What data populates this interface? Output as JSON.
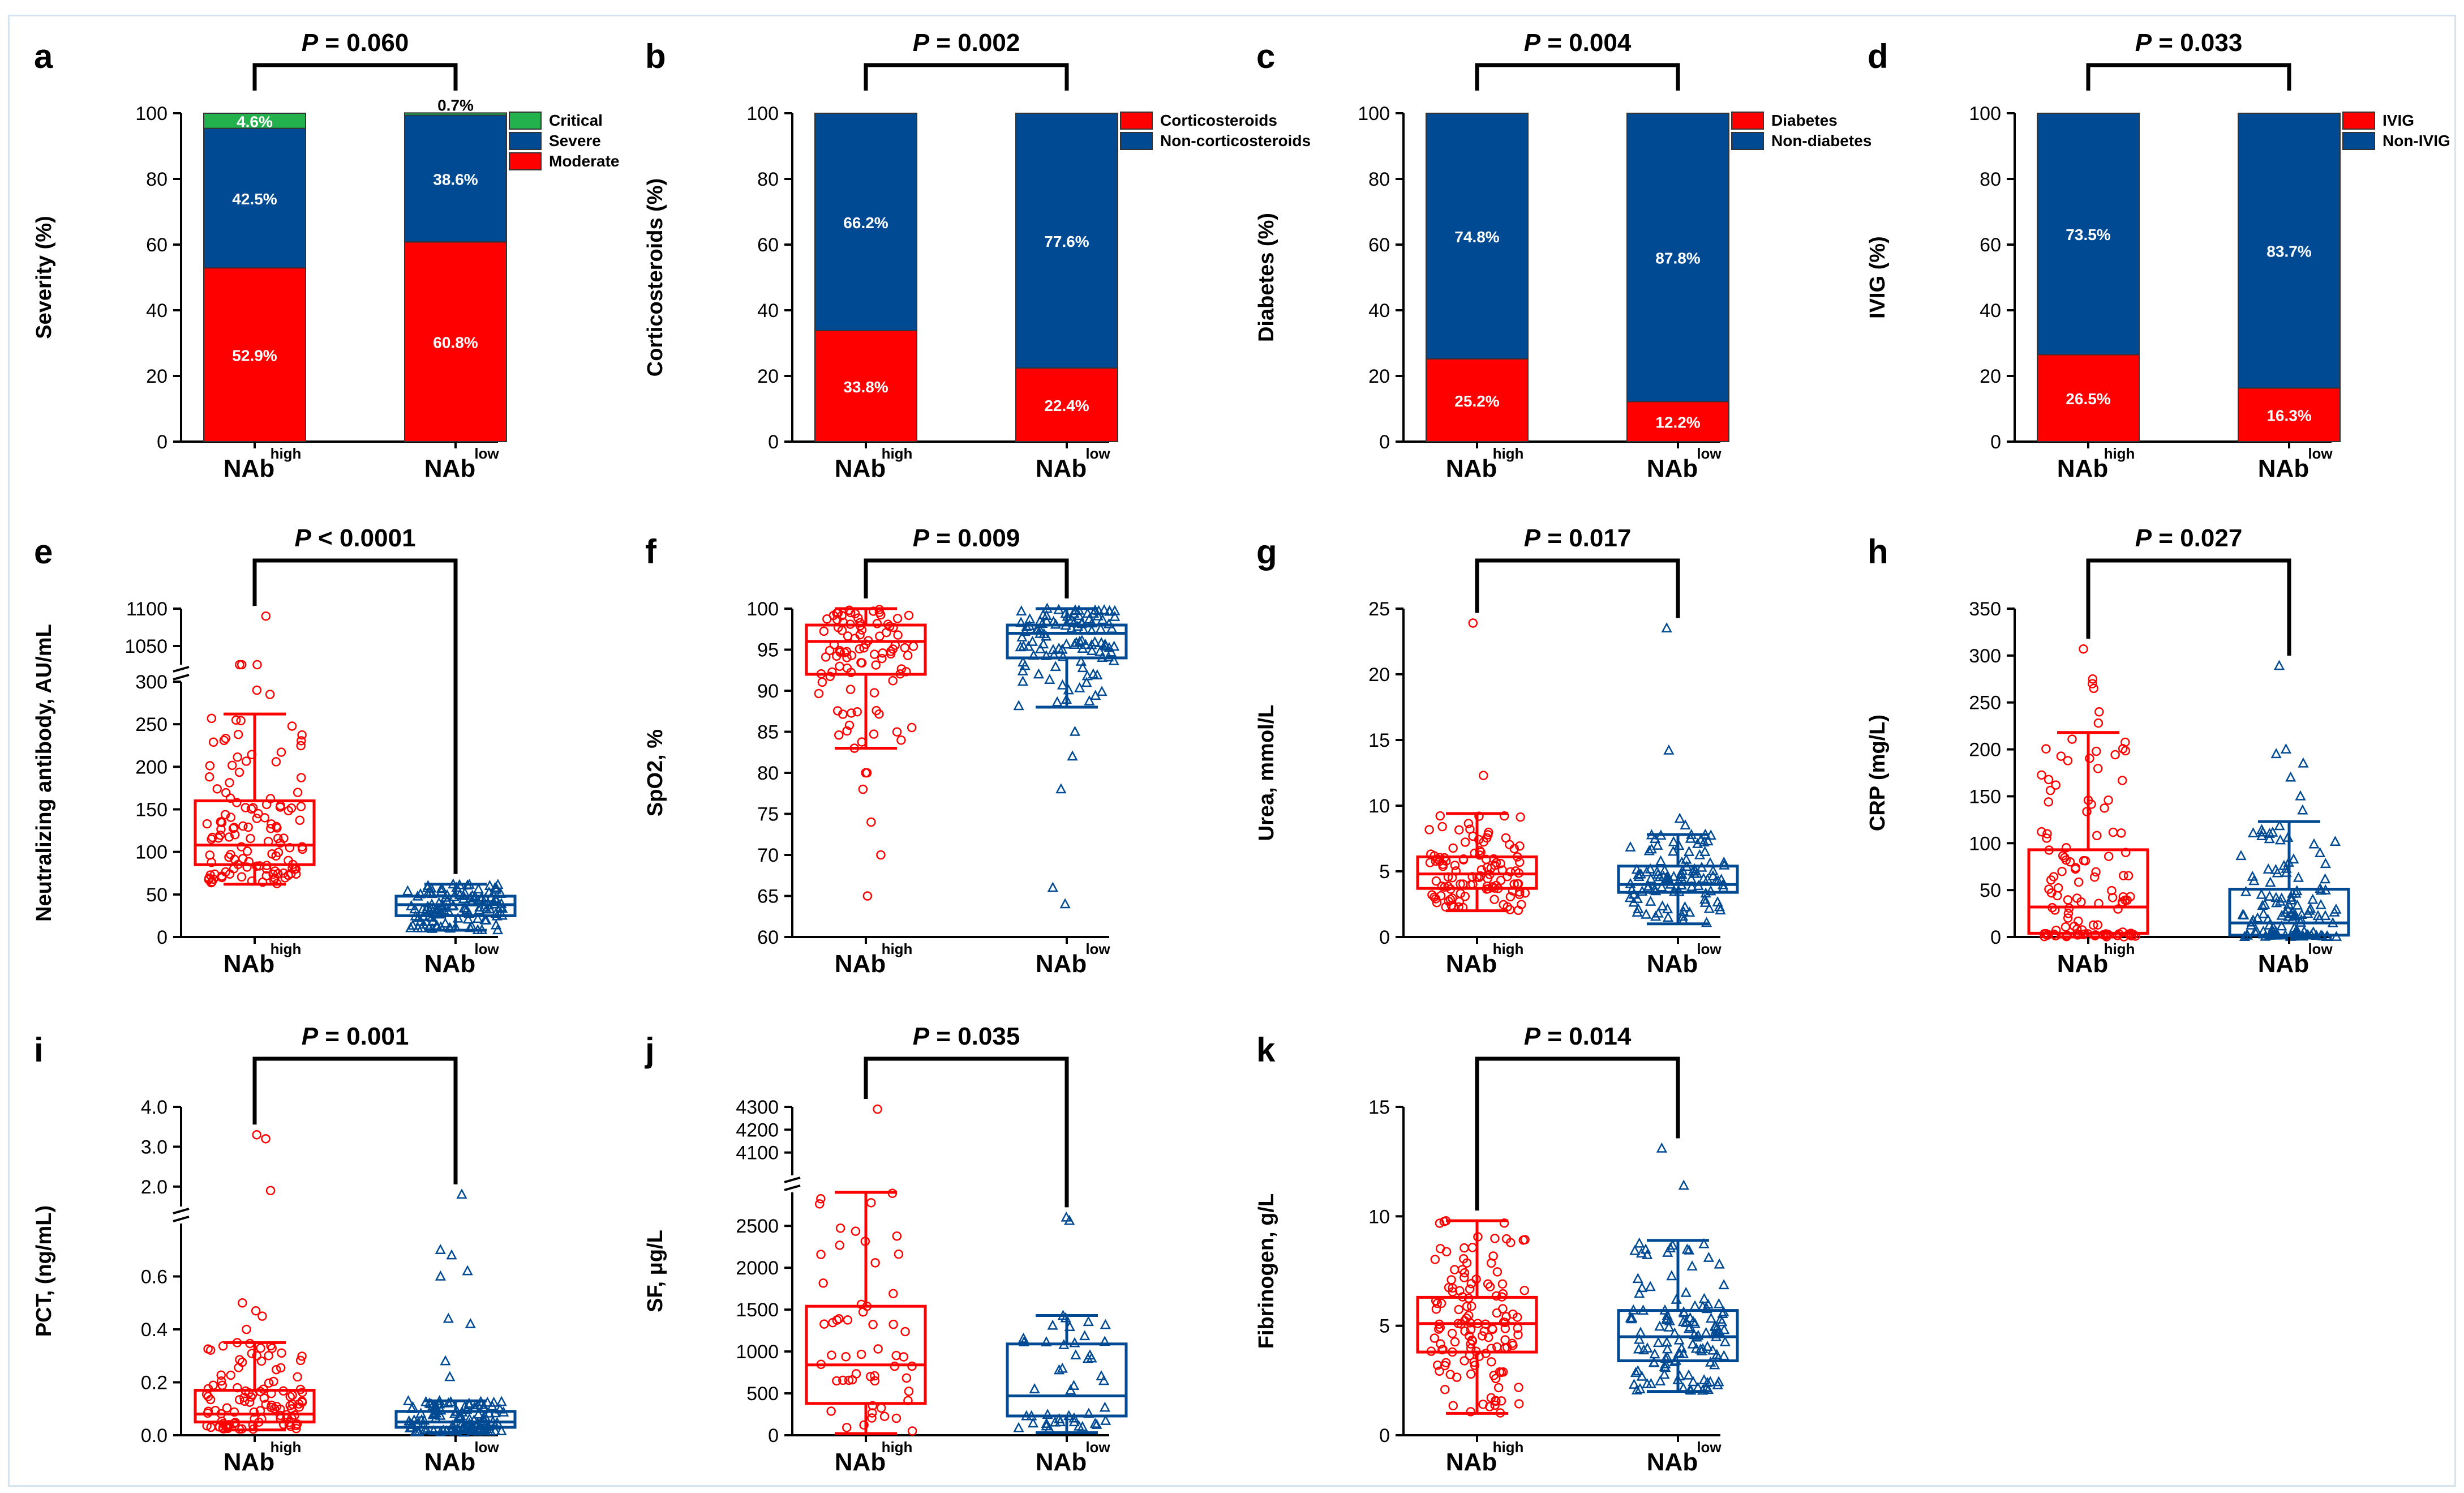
{
  "colors": {
    "high": "#ff0000",
    "low": "#004a93",
    "critical": "#22b14c",
    "axis": "#000000"
  },
  "group_labels": {
    "high": {
      "base": "NAb",
      "sup": "high"
    },
    "low": {
      "base": "NAb",
      "sup": "low"
    }
  },
  "chart_data": [
    {
      "panel": "a",
      "type": "stacked_bar",
      "pvalue": "P = 0.060",
      "ylabel": "Severity (%)",
      "ylim": [
        0,
        100
      ],
      "yticks": [
        "0",
        "20",
        "40",
        "60",
        "80",
        "100"
      ],
      "categories": [
        "NAb high",
        "NAb low"
      ],
      "series": [
        {
          "name": "Moderate",
          "color": "#ff0000",
          "values": [
            52.9,
            60.8
          ],
          "labels": [
            "52.9%",
            "60.8%"
          ]
        },
        {
          "name": "Severe",
          "color": "#004a93",
          "values": [
            42.5,
            38.6
          ],
          "labels": [
            "42.5%",
            "38.6%"
          ]
        },
        {
          "name": "Critical",
          "color": "#22b14c",
          "values": [
            4.6,
            0.7
          ],
          "labels": [
            "4.6%",
            "0.7%"
          ]
        }
      ],
      "legend": [
        "Critical",
        "Severe",
        "Moderate"
      ]
    },
    {
      "panel": "b",
      "type": "stacked_bar",
      "pvalue": "P = 0.002",
      "ylabel": "Corticosteroids (%)",
      "ylim": [
        0,
        100
      ],
      "yticks": [
        "0",
        "20",
        "40",
        "60",
        "80",
        "100"
      ],
      "categories": [
        "NAb high",
        "NAb low"
      ],
      "series": [
        {
          "name": "Corticosteroids",
          "color": "#ff0000",
          "values": [
            33.8,
            22.4
          ],
          "labels": [
            "33.8%",
            "22.4%"
          ]
        },
        {
          "name": "Non-corticosteroids",
          "color": "#004a93",
          "values": [
            66.2,
            77.6
          ],
          "labels": [
            "66.2%",
            "77.6%"
          ]
        }
      ],
      "legend": [
        "Corticosteroids",
        "Non-corticosteroids"
      ]
    },
    {
      "panel": "c",
      "type": "stacked_bar",
      "pvalue": "P = 0.004",
      "ylabel": "Diabetes (%)",
      "ylim": [
        0,
        100
      ],
      "yticks": [
        "0",
        "20",
        "40",
        "60",
        "80",
        "100"
      ],
      "categories": [
        "NAb high",
        "NAb low"
      ],
      "series": [
        {
          "name": "Diabetes",
          "color": "#ff0000",
          "values": [
            25.2,
            12.2
          ],
          "labels": [
            "25.2%",
            "12.2%"
          ]
        },
        {
          "name": "Non-diabetes",
          "color": "#004a93",
          "values": [
            74.8,
            87.8
          ],
          "labels": [
            "74.8%",
            "87.8%"
          ]
        }
      ],
      "legend": [
        "Diabetes",
        "Non-diabetes"
      ]
    },
    {
      "panel": "d",
      "type": "stacked_bar",
      "pvalue": "P = 0.033",
      "ylabel": "IVIG (%)",
      "ylim": [
        0,
        100
      ],
      "yticks": [
        "0",
        "20",
        "40",
        "60",
        "80",
        "100"
      ],
      "categories": [
        "NAb high",
        "NAb low"
      ],
      "series": [
        {
          "name": "IVIG",
          "color": "#ff0000",
          "values": [
            26.5,
            16.3
          ],
          "labels": [
            "26.5%",
            "16.3%"
          ]
        },
        {
          "name": "Non-IVIG",
          "color": "#004a93",
          "values": [
            73.5,
            83.7
          ],
          "labels": [
            "73.5%",
            "83.7%"
          ]
        }
      ],
      "legend": [
        "IVIG",
        "Non-IVIG"
      ]
    },
    {
      "panel": "e",
      "type": "box",
      "pvalue": "P < 0.0001",
      "ylabel": "Neutralizing antibody, AU/mL",
      "segments": [
        {
          "from": 0,
          "to": 300,
          "share": 0.82
        },
        {
          "from": 1025,
          "to": 1100,
          "share": 0.18
        }
      ],
      "yticks": [
        0,
        50,
        100,
        150,
        200,
        250,
        300,
        1050,
        1100
      ],
      "groups": [
        {
          "name": "NAb high",
          "min": 62,
          "q1": 85,
          "median": 108,
          "q3": 160,
          "max": 262,
          "n": 120,
          "outliers": [
            285,
            290,
            310,
            325,
            340,
            1090
          ]
        },
        {
          "name": "NAb low",
          "min": 8,
          "q1": 25,
          "median": 38,
          "q3": 48,
          "max": 62,
          "n": 120,
          "outliers": []
        }
      ]
    },
    {
      "panel": "f",
      "type": "box",
      "pvalue": "P = 0.009",
      "ylabel": "SpO2, %",
      "segments": [
        {
          "from": 60,
          "to": 100,
          "share": 1
        }
      ],
      "yticks": [
        60,
        65,
        70,
        75,
        80,
        85,
        90,
        95,
        100
      ],
      "groups": [
        {
          "name": "NAb high",
          "min": 83,
          "q1": 92,
          "median": 96,
          "q3": 98,
          "max": 100,
          "n": 90,
          "outliers": [
            80,
            80,
            78,
            74,
            70,
            65
          ]
        },
        {
          "name": "NAb low",
          "min": 88,
          "q1": 94,
          "median": 97,
          "q3": 98,
          "max": 100,
          "n": 110,
          "outliers": [
            85,
            82,
            78,
            66,
            64
          ]
        }
      ]
    },
    {
      "panel": "g",
      "type": "box",
      "pvalue": "P = 0.017",
      "ylabel": "Urea, mmol/L",
      "segments": [
        {
          "from": 0,
          "to": 25,
          "share": 1
        }
      ],
      "yticks": [
        0,
        5,
        10,
        15,
        20,
        25
      ],
      "groups": [
        {
          "name": "NAb high",
          "min": 2.0,
          "q1": 3.7,
          "median": 4.8,
          "q3": 6.1,
          "max": 9.4,
          "n": 110,
          "outliers": [
            12.3,
            23.9
          ]
        },
        {
          "name": "NAb low",
          "min": 1.0,
          "q1": 3.4,
          "median": 4.0,
          "q3": 5.4,
          "max": 7.8,
          "n": 110,
          "outliers": [
            8.5,
            9.0,
            14.2,
            23.5
          ]
        }
      ]
    },
    {
      "panel": "h",
      "type": "box",
      "pvalue": "P = 0.027",
      "ylabel": "CRP (mg/L)",
      "segments": [
        {
          "from": 0,
          "to": 350,
          "share": 1
        }
      ],
      "yticks": [
        0,
        50,
        100,
        150,
        200,
        250,
        300,
        350
      ],
      "groups": [
        {
          "name": "NAb high",
          "min": 0,
          "q1": 4,
          "median": 32,
          "q3": 93,
          "max": 218,
          "n": 110,
          "outliers": [
            228,
            240,
            265,
            270,
            275,
            307
          ]
        },
        {
          "name": "NAb low",
          "min": 0,
          "q1": 2,
          "median": 15,
          "q3": 51,
          "max": 123,
          "n": 120,
          "outliers": [
            135,
            150,
            170,
            185,
            195,
            200,
            289
          ]
        }
      ]
    },
    {
      "panel": "i",
      "type": "box",
      "pvalue": "P = 0.001",
      "ylabel": "PCT, (ng/mL)",
      "segments": [
        {
          "from": 0,
          "to": 0.8,
          "share": 0.68
        },
        {
          "from": 1.5,
          "to": 4.0,
          "share": 0.32
        }
      ],
      "yticks": [
        0.0,
        0.2,
        0.4,
        0.6,
        2.0,
        3.0,
        4.0
      ],
      "groups": [
        {
          "name": "NAb high",
          "min": 0.02,
          "q1": 0.05,
          "median": 0.08,
          "q3": 0.17,
          "max": 0.35,
          "n": 110,
          "outliers": [
            0.4,
            0.45,
            0.47,
            0.5,
            1.9,
            3.2,
            3.3
          ]
        },
        {
          "name": "NAb low",
          "min": 0.01,
          "q1": 0.03,
          "median": 0.05,
          "q3": 0.09,
          "max": 0.13,
          "n": 110,
          "outliers": [
            0.22,
            0.28,
            0.42,
            0.44,
            0.6,
            0.62,
            0.68,
            0.7,
            1.8
          ]
        }
      ]
    },
    {
      "panel": "j",
      "type": "box",
      "pvalue": "P = 0.035",
      "ylabel": "SF, μg/L",
      "segments": [
        {
          "from": 0,
          "to": 2900,
          "share": 0.78
        },
        {
          "from": 4000,
          "to": 4300,
          "share": 0.22
        }
      ],
      "yticks": [
        0,
        500,
        1000,
        1500,
        2000,
        2500,
        4100,
        4200,
        4300
      ],
      "groups": [
        {
          "name": "NAb high",
          "min": 20,
          "q1": 380,
          "median": 840,
          "q3": 1540,
          "max": 2900,
          "n": 55,
          "outliers": [
            4290
          ]
        },
        {
          "name": "NAb low",
          "min": 30,
          "q1": 230,
          "median": 470,
          "q3": 1090,
          "max": 1430,
          "n": 45,
          "outliers": [
            2560,
            2600
          ]
        }
      ]
    },
    {
      "panel": "k",
      "type": "box",
      "pvalue": "P = 0.014",
      "ylabel": "Fibrinogen, g/L",
      "segments": [
        {
          "from": 0,
          "to": 15,
          "share": 1
        }
      ],
      "yticks": [
        0,
        5,
        10,
        15
      ],
      "groups": [
        {
          "name": "NAb high",
          "min": 1.0,
          "q1": 3.8,
          "median": 5.1,
          "q3": 6.3,
          "max": 9.8,
          "n": 130,
          "outliers": []
        },
        {
          "name": "NAb low",
          "min": 2.0,
          "q1": 3.4,
          "median": 4.5,
          "q3": 5.7,
          "max": 8.9,
          "n": 130,
          "outliers": [
            11.4,
            13.1
          ]
        }
      ]
    }
  ]
}
